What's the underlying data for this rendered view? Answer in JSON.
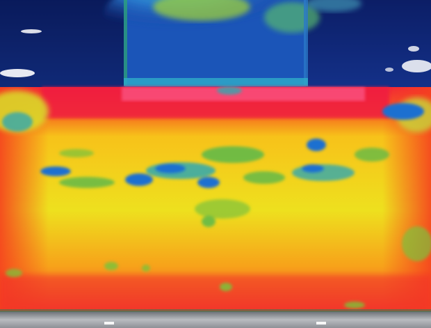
{
  "image": {
    "kind": "thermal-infrared-image",
    "palette": [
      "#0a1a5a",
      "#123a9a",
      "#1e6fd0",
      "#2fa8b0",
      "#7cc23a",
      "#e8e21e",
      "#f7b21a",
      "#f56a1e",
      "#f2243a",
      "#ffffff"
    ],
    "regions": [
      "cold-background-wall",
      "warm-surface-top-band",
      "hot-surface-body",
      "cool-patches",
      "grey-floor-strip"
    ]
  }
}
